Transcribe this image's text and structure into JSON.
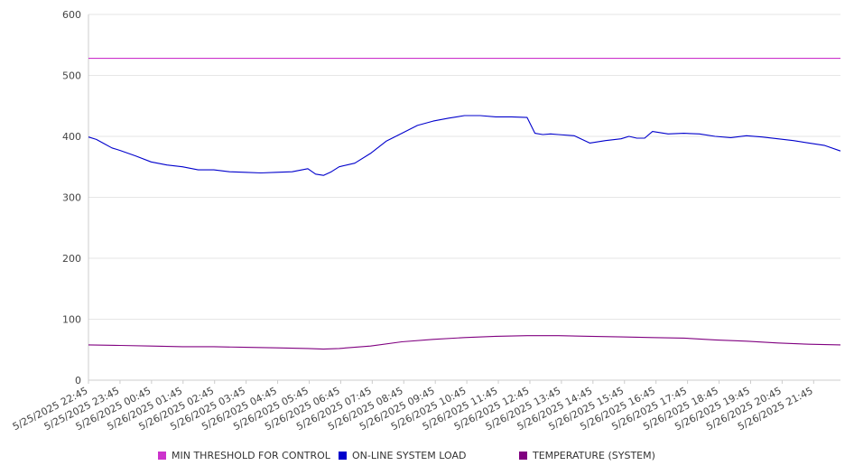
{
  "chart_data": {
    "type": "line",
    "ylim": [
      0,
      600
    ],
    "yticks": [
      0,
      100,
      200,
      300,
      400,
      500,
      600
    ],
    "x_tick_labels": [
      "5/25/2025 22:45",
      "5/25/2025 23:45",
      "5/26/2025 00:45",
      "5/26/2025 01:45",
      "5/26/2025 02:45",
      "5/26/2025 03:45",
      "5/26/2025 04:45",
      "5/26/2025 05:45",
      "5/26/2025 06:45",
      "5/26/2025 07:45",
      "5/26/2025 08:45",
      "5/26/2025 09:45",
      "5/26/2025 10:45",
      "5/26/2025 11:45",
      "5/26/2025 12:45",
      "5/26/2025 13:45",
      "5/26/2025 14:45",
      "5/26/2025 15:45",
      "5/26/2025 16:45",
      "5/26/2025 17:45",
      "5/26/2025 18:45",
      "5/26/2025 19:45",
      "5/26/2025 20:45",
      "5/26/2025 21:45"
    ],
    "grid": true,
    "legend_position": "bottom",
    "series": [
      {
        "name": "MIN THRESHOLD FOR CONTROL",
        "color": "#cc33cc",
        "x_hours": [
          0,
          24
        ],
        "values": [
          528,
          528
        ]
      },
      {
        "name": "ON-LINE SYSTEM LOAD",
        "color": "#0000cc",
        "x_hours": [
          0,
          0.25,
          0.5,
          0.75,
          1,
          1.5,
          2,
          2.5,
          3,
          3.5,
          4,
          4.5,
          5,
          5.5,
          6,
          6.5,
          7,
          7.25,
          7.5,
          7.75,
          8,
          8.5,
          9,
          9.5,
          10,
          10.5,
          11,
          11.5,
          12,
          12.5,
          13,
          13.5,
          14,
          14.25,
          14.5,
          14.75,
          15,
          15.5,
          16,
          16.5,
          17,
          17.25,
          17.5,
          17.75,
          18,
          18.5,
          19,
          19.5,
          20,
          20.5,
          21,
          21.5,
          22,
          22.5,
          23,
          23.5,
          24
        ],
        "values": [
          399,
          395,
          388,
          381,
          377,
          368,
          358,
          353,
          350,
          345,
          345,
          342,
          341,
          340,
          341,
          342,
          347,
          338,
          336,
          342,
          350,
          356,
          372,
          392,
          405,
          418,
          425,
          430,
          434,
          434,
          432,
          432,
          431,
          405,
          403,
          404,
          403,
          401,
          389,
          393,
          396,
          400,
          397,
          397,
          408,
          404,
          405,
          404,
          400,
          398,
          401,
          399,
          396,
          393,
          389,
          385,
          376
        ]
      },
      {
        "name": "TEMPERATURE (SYSTEM)",
        "color": "#800080",
        "x_hours": [
          0,
          1,
          2,
          3,
          4,
          5,
          6,
          7,
          7.5,
          8,
          9,
          10,
          11,
          12,
          13,
          14,
          15,
          16,
          17,
          18,
          19,
          20,
          21,
          22,
          23,
          24
        ],
        "values": [
          58,
          57,
          56,
          55,
          55,
          54,
          53,
          52,
          51,
          52,
          56,
          63,
          67,
          70,
          72,
          73,
          73,
          72,
          71,
          70,
          69,
          66,
          64,
          61,
          59,
          58
        ]
      }
    ]
  }
}
